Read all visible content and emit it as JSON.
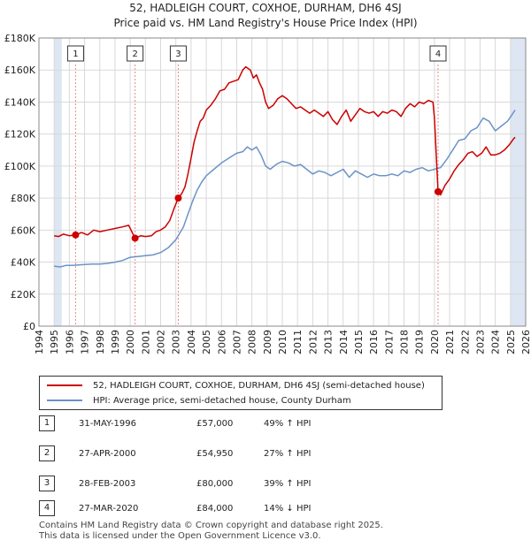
{
  "title_line1": "52, HADLEIGH COURT, COXHOE, DURHAM, DH6 4SJ",
  "title_line2": "Price paid vs. HM Land Registry's House Price Index (HPI)",
  "colors": {
    "property": "#cc0000",
    "hpi": "#6b93c8",
    "shade": "#dde6f2",
    "marker_line": "#e88a8a"
  },
  "chart_data": {
    "type": "line",
    "xlim": [
      1994,
      2026
    ],
    "ylim": [
      0,
      180000
    ],
    "x_ticks": [
      "1994",
      "1995",
      "1996",
      "1997",
      "1998",
      "1999",
      "2000",
      "2001",
      "2002",
      "2003",
      "2004",
      "2005",
      "2006",
      "2007",
      "2008",
      "2009",
      "2010",
      "2011",
      "2012",
      "2013",
      "2014",
      "2015",
      "2016",
      "2017",
      "2018",
      "2019",
      "2020",
      "2021",
      "2022",
      "2023",
      "2024",
      "2025",
      "2026"
    ],
    "y_ticks": [
      {
        "value": 0,
        "label": "£0"
      },
      {
        "value": 20000,
        "label": "£20K"
      },
      {
        "value": 40000,
        "label": "£40K"
      },
      {
        "value": 60000,
        "label": "£60K"
      },
      {
        "value": 80000,
        "label": "£80K"
      },
      {
        "value": 100000,
        "label": "£100K"
      },
      {
        "value": 120000,
        "label": "£120K"
      },
      {
        "value": 140000,
        "label": "£140K"
      },
      {
        "value": 160000,
        "label": "£160K"
      },
      {
        "value": 180000,
        "label": "£180K"
      }
    ],
    "shaded_ranges": [
      [
        1995.0,
        1995.5
      ],
      [
        2025.0,
        2026.0
      ]
    ],
    "series": [
      {
        "name": "52, HADLEIGH COURT, COXHOE, DURHAM, DH6 4SJ (semi-detached house)",
        "color": "#cc0000",
        "points": [
          [
            1995.0,
            56500
          ],
          [
            1995.3,
            56000
          ],
          [
            1995.6,
            57500
          ],
          [
            1996.0,
            56500
          ],
          [
            1996.41,
            57000
          ],
          [
            1996.8,
            58500
          ],
          [
            1997.2,
            57000
          ],
          [
            1997.6,
            60000
          ],
          [
            1998.0,
            59000
          ],
          [
            1998.5,
            60000
          ],
          [
            1999.0,
            61000
          ],
          [
            1999.5,
            62000
          ],
          [
            1999.9,
            63000
          ],
          [
            2000.32,
            54950
          ],
          [
            2000.7,
            56500
          ],
          [
            2001.0,
            56000
          ],
          [
            2001.4,
            56500
          ],
          [
            2001.7,
            59000
          ],
          [
            2002.0,
            60000
          ],
          [
            2002.3,
            62000
          ],
          [
            2002.6,
            66000
          ],
          [
            2002.9,
            74000
          ],
          [
            2003.16,
            80000
          ],
          [
            2003.4,
            83000
          ],
          [
            2003.6,
            87000
          ],
          [
            2003.8,
            95000
          ],
          [
            2004.0,
            105000
          ],
          [
            2004.2,
            115000
          ],
          [
            2004.4,
            122000
          ],
          [
            2004.6,
            128000
          ],
          [
            2004.8,
            130000
          ],
          [
            2005.0,
            135000
          ],
          [
            2005.3,
            138000
          ],
          [
            2005.6,
            142000
          ],
          [
            2005.9,
            147000
          ],
          [
            2006.2,
            148000
          ],
          [
            2006.5,
            152000
          ],
          [
            2006.8,
            153000
          ],
          [
            2007.1,
            154000
          ],
          [
            2007.4,
            160000
          ],
          [
            2007.6,
            162000
          ],
          [
            2007.9,
            160000
          ],
          [
            2008.1,
            155000
          ],
          [
            2008.3,
            157000
          ],
          [
            2008.5,
            152000
          ],
          [
            2008.7,
            148000
          ],
          [
            2008.9,
            140000
          ],
          [
            2009.1,
            136000
          ],
          [
            2009.4,
            138000
          ],
          [
            2009.7,
            142000
          ],
          [
            2010.0,
            144000
          ],
          [
            2010.3,
            142000
          ],
          [
            2010.6,
            139000
          ],
          [
            2010.9,
            136000
          ],
          [
            2011.2,
            137000
          ],
          [
            2011.5,
            135000
          ],
          [
            2011.8,
            133000
          ],
          [
            2012.1,
            135000
          ],
          [
            2012.4,
            133000
          ],
          [
            2012.7,
            131000
          ],
          [
            2013.0,
            134000
          ],
          [
            2013.3,
            129000
          ],
          [
            2013.6,
            126000
          ],
          [
            2013.9,
            131000
          ],
          [
            2014.2,
            135000
          ],
          [
            2014.5,
            128000
          ],
          [
            2014.8,
            132000
          ],
          [
            2015.1,
            136000
          ],
          [
            2015.4,
            134000
          ],
          [
            2015.7,
            133000
          ],
          [
            2016.0,
            134000
          ],
          [
            2016.3,
            131000
          ],
          [
            2016.6,
            134000
          ],
          [
            2016.9,
            133000
          ],
          [
            2017.2,
            135000
          ],
          [
            2017.5,
            134000
          ],
          [
            2017.8,
            131000
          ],
          [
            2018.1,
            136000
          ],
          [
            2018.4,
            139000
          ],
          [
            2018.7,
            137000
          ],
          [
            2019.0,
            140000
          ],
          [
            2019.3,
            139000
          ],
          [
            2019.6,
            141000
          ],
          [
            2019.9,
            140000
          ],
          [
            2020.0,
            130000
          ],
          [
            2020.24,
            84000
          ],
          [
            2020.4,
            82000
          ],
          [
            2020.7,
            88000
          ],
          [
            2021.0,
            92000
          ],
          [
            2021.3,
            97000
          ],
          [
            2021.6,
            101000
          ],
          [
            2021.9,
            104000
          ],
          [
            2022.2,
            108000
          ],
          [
            2022.5,
            109000
          ],
          [
            2022.8,
            106000
          ],
          [
            2023.1,
            108000
          ],
          [
            2023.4,
            112000
          ],
          [
            2023.7,
            107000
          ],
          [
            2024.0,
            107000
          ],
          [
            2024.3,
            108000
          ],
          [
            2024.6,
            110000
          ],
          [
            2024.9,
            113000
          ],
          [
            2025.2,
            117000
          ],
          [
            2025.3,
            118000
          ]
        ]
      },
      {
        "name": "HPI: Average price, semi-detached house, County Durham",
        "color": "#6b93c8",
        "points": [
          [
            1995.0,
            37500
          ],
          [
            1995.4,
            37000
          ],
          [
            1995.8,
            38000
          ],
          [
            1996.2,
            38000
          ],
          [
            1996.6,
            38200
          ],
          [
            1997.0,
            38500
          ],
          [
            1997.5,
            38800
          ],
          [
            1998.0,
            38800
          ],
          [
            1998.5,
            39200
          ],
          [
            1999.0,
            40000
          ],
          [
            1999.5,
            41000
          ],
          [
            2000.0,
            43000
          ],
          [
            2000.5,
            43500
          ],
          [
            2001.0,
            44000
          ],
          [
            2001.5,
            44500
          ],
          [
            2002.0,
            46000
          ],
          [
            2002.5,
            49000
          ],
          [
            2003.0,
            54000
          ],
          [
            2003.5,
            62000
          ],
          [
            2003.8,
            70000
          ],
          [
            2004.1,
            78000
          ],
          [
            2004.4,
            85000
          ],
          [
            2004.7,
            90000
          ],
          [
            2005.0,
            94000
          ],
          [
            2005.5,
            98000
          ],
          [
            2006.0,
            102000
          ],
          [
            2006.5,
            105000
          ],
          [
            2007.0,
            108000
          ],
          [
            2007.4,
            109000
          ],
          [
            2007.7,
            112000
          ],
          [
            2008.0,
            110000
          ],
          [
            2008.3,
            112000
          ],
          [
            2008.6,
            107000
          ],
          [
            2008.9,
            100000
          ],
          [
            2009.2,
            98000
          ],
          [
            2009.6,
            101000
          ],
          [
            2010.0,
            103000
          ],
          [
            2010.4,
            102000
          ],
          [
            2010.8,
            100000
          ],
          [
            2011.2,
            101000
          ],
          [
            2011.6,
            98000
          ],
          [
            2012.0,
            95000
          ],
          [
            2012.4,
            97000
          ],
          [
            2012.8,
            96000
          ],
          [
            2013.2,
            94000
          ],
          [
            2013.6,
            96000
          ],
          [
            2014.0,
            98000
          ],
          [
            2014.4,
            93000
          ],
          [
            2014.8,
            97000
          ],
          [
            2015.2,
            95000
          ],
          [
            2015.6,
            93000
          ],
          [
            2016.0,
            95000
          ],
          [
            2016.4,
            94000
          ],
          [
            2016.8,
            94000
          ],
          [
            2017.2,
            95000
          ],
          [
            2017.6,
            94000
          ],
          [
            2018.0,
            97000
          ],
          [
            2018.4,
            96000
          ],
          [
            2018.8,
            98000
          ],
          [
            2019.2,
            99000
          ],
          [
            2019.6,
            97000
          ],
          [
            2020.0,
            98000
          ],
          [
            2020.4,
            99000
          ],
          [
            2020.8,
            104000
          ],
          [
            2021.2,
            110000
          ],
          [
            2021.6,
            116000
          ],
          [
            2022.0,
            117000
          ],
          [
            2022.4,
            122000
          ],
          [
            2022.8,
            124000
          ],
          [
            2023.2,
            130000
          ],
          [
            2023.6,
            128000
          ],
          [
            2024.0,
            122000
          ],
          [
            2024.4,
            125000
          ],
          [
            2024.8,
            128000
          ],
          [
            2025.1,
            132000
          ],
          [
            2025.3,
            135000
          ]
        ]
      }
    ],
    "sales": [
      {
        "num": "1",
        "x": 1996.41,
        "y": 57000,
        "date": "31-MAY-1996",
        "price": "£57,000",
        "hpi": "49% ↑ HPI"
      },
      {
        "num": "2",
        "x": 2000.32,
        "y": 54950,
        "date": "27-APR-2000",
        "price": "£54,950",
        "hpi": "27% ↑ HPI"
      },
      {
        "num": "3",
        "x": 2003.16,
        "y": 80000,
        "date": "28-FEB-2003",
        "price": "£80,000",
        "hpi": "39% ↑ HPI"
      },
      {
        "num": "4",
        "x": 2020.24,
        "y": 84000,
        "date": "27-MAR-2020",
        "price": "£84,000",
        "hpi": "14% ↓ HPI"
      }
    ]
  },
  "footer_line1": "Contains HM Land Registry data © Crown copyright and database right 2025.",
  "footer_line2": "This data is licensed under the Open Government Licence v3.0."
}
